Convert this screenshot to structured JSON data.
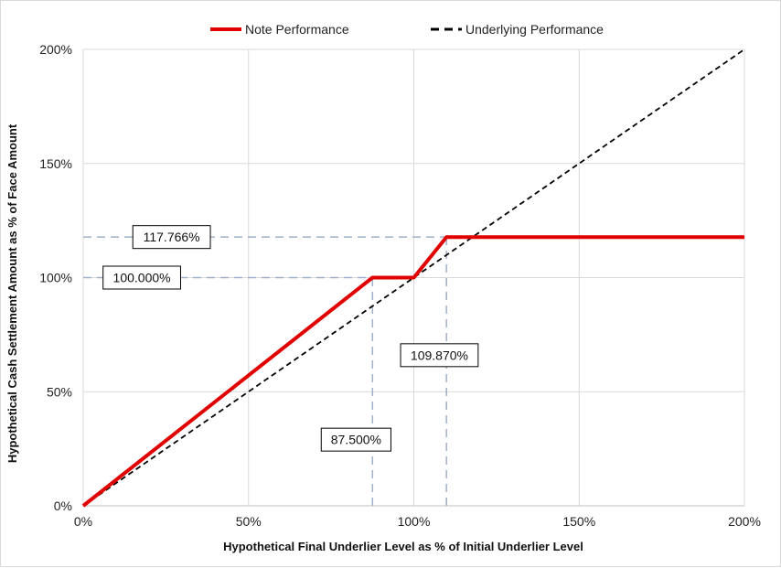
{
  "chart_data": {
    "type": "line",
    "xlabel": "Hypothetical Final Underlier Level as % of Initial Underlier Level",
    "ylabel": "Hypothetical Cash Settlement Amount as % of Face Amount",
    "xlim": [
      0,
      200
    ],
    "ylim": [
      0,
      200
    ],
    "x_ticks": [
      0,
      50,
      100,
      150,
      200
    ],
    "y_ticks": [
      0,
      50,
      100,
      150,
      200
    ],
    "x_tick_labels": [
      "0%",
      "50%",
      "100%",
      "150%",
      "200%"
    ],
    "y_tick_labels": [
      "0%",
      "50%",
      "100%",
      "150%",
      "200%"
    ],
    "grid": true,
    "legend_position": "top",
    "series": [
      {
        "name": "Note Performance",
        "color": "#e00000",
        "style": "solid",
        "x": [
          0,
          87.5,
          100,
          109.87,
          200
        ],
        "y": [
          0,
          100,
          100,
          117.766,
          117.766
        ]
      },
      {
        "name": "Underlying Performance",
        "color": "#000000",
        "style": "dashed",
        "x": [
          0,
          200
        ],
        "y": [
          0,
          200
        ]
      }
    ],
    "reference_lines": [
      {
        "orientation": "horizontal",
        "value": 100,
        "from": 0,
        "to": 87.5
      },
      {
        "orientation": "horizontal",
        "value": 117.766,
        "from": 0,
        "to": 109.87
      },
      {
        "orientation": "vertical",
        "value": 87.5,
        "from": 0,
        "to": 100
      },
      {
        "orientation": "vertical",
        "value": 109.87,
        "from": 0,
        "to": 117.766
      }
    ],
    "annotations": [
      {
        "text": "117.766%",
        "x": 15,
        "y": 117.766
      },
      {
        "text": "100.000%",
        "x": 6,
        "y": 100
      },
      {
        "text": "109.870%",
        "x": 96,
        "y": 66
      },
      {
        "text": "87.500%",
        "x": 72,
        "y": 29
      }
    ]
  }
}
